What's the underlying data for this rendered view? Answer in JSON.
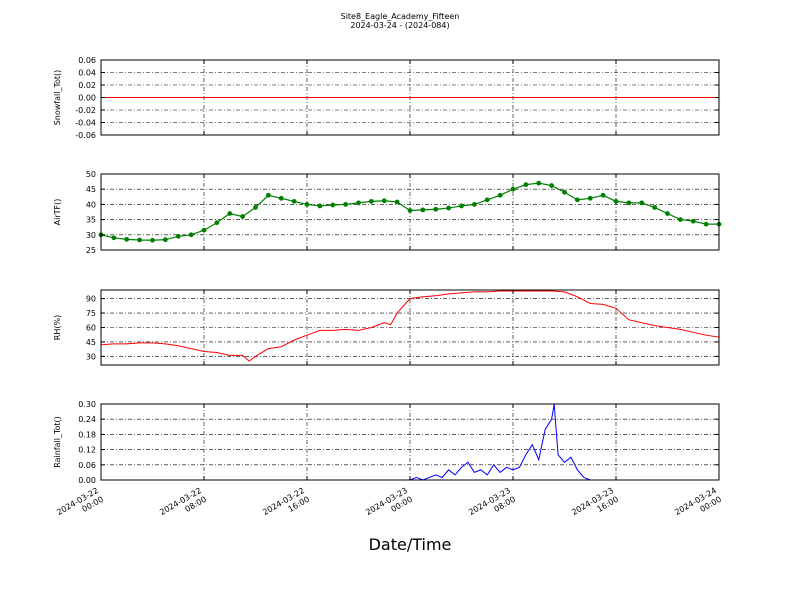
{
  "title": "Site8_Eagle_Academy_Fifteen",
  "subtitle": "2024-03-24 - (2024-084)",
  "xlabel": "Date/Time",
  "x_ticks": [
    "2024-03-22\n00:00",
    "2024-03-22\n08:00",
    "2024-03-22\n16:00",
    "2024-03-23\n00:00",
    "2024-03-23\n08:00",
    "2024-03-23\n16:00",
    "2024-03-24\n00:00"
  ],
  "colors": {
    "snowfall": "#ff0000",
    "airtf": "#008000",
    "rh": "#ff0000",
    "rainfall": "#0000ff"
  },
  "chart_data": [
    {
      "type": "line",
      "ylabel": "Snowfall_Tot()",
      "ylim": [
        -0.06,
        0.06
      ],
      "yticks": [
        "-0.06",
        "-0.04",
        "-0.02",
        "0.00",
        "0.02",
        "0.04",
        "0.06"
      ],
      "grid": true,
      "x": [
        0,
        48
      ],
      "series": [
        {
          "values": [
            0.0,
            0.0
          ]
        }
      ]
    },
    {
      "type": "line",
      "ylabel": "AirTF()",
      "ylim": [
        25,
        50
      ],
      "yticks": [
        "25",
        "30",
        "35",
        "40",
        "45",
        "50"
      ],
      "grid": true,
      "x": [
        0,
        1,
        2,
        3,
        4,
        5,
        6,
        7,
        8,
        9,
        10,
        11,
        12,
        13,
        14,
        15,
        16,
        17,
        18,
        19,
        20,
        21,
        22,
        23,
        24,
        25,
        26,
        27,
        28,
        29,
        30,
        31,
        32,
        33,
        34,
        35,
        36,
        37,
        38,
        39,
        40,
        41,
        42,
        43,
        44,
        45,
        46,
        47,
        48
      ],
      "series": [
        {
          "values": [
            30,
            29,
            28.5,
            28.3,
            28.2,
            28.4,
            29.5,
            30,
            31.5,
            34,
            37,
            36,
            39,
            43,
            42,
            41,
            40,
            39.5,
            39.8,
            40,
            40.5,
            41,
            41.2,
            40.8,
            38,
            38.2,
            38.4,
            38.8,
            39.5,
            40,
            41.5,
            43,
            45,
            46.5,
            47,
            46.2,
            44,
            41.5,
            42,
            43,
            41,
            40.5,
            40.5,
            39,
            37,
            35,
            34.5,
            33.5,
            33.5
          ]
        }
      ]
    },
    {
      "type": "line",
      "ylabel": "RH(%)",
      "ylim": [
        21,
        99
      ],
      "yticks": [
        "30",
        "45",
        "60",
        "75",
        "90"
      ],
      "grid": true,
      "x": [
        0,
        1,
        2,
        3,
        4,
        5,
        6,
        7,
        8,
        9,
        10,
        11,
        11.5,
        12,
        13,
        14,
        15,
        16,
        17,
        18,
        19,
        20,
        21,
        22,
        22.5,
        23,
        24,
        25,
        26,
        27,
        28,
        29,
        30,
        31,
        32,
        33,
        34,
        35,
        36,
        37,
        38,
        39,
        40,
        41,
        42,
        43,
        44,
        45,
        46,
        47,
        48
      ],
      "series": [
        {
          "values": [
            42,
            43,
            43,
            44,
            44,
            43,
            41,
            38,
            35,
            34,
            31,
            31,
            25,
            30,
            38,
            40,
            47,
            52,
            57,
            57,
            58,
            57,
            60,
            65,
            63,
            75,
            90,
            92,
            93,
            95,
            96,
            97,
            97,
            98,
            98,
            98,
            98,
            98,
            97,
            92,
            85,
            84,
            80,
            68,
            65,
            62,
            60,
            58,
            55,
            52,
            50
          ]
        }
      ]
    },
    {
      "type": "line",
      "ylabel": "Rainfall_Tot()",
      "ylim": [
        0,
        0.3
      ],
      "yticks": [
        "0.00",
        "0.06",
        "0.12",
        "0.18",
        "0.24",
        "0.30"
      ],
      "grid": true,
      "x": [
        0,
        24,
        24.5,
        25,
        26,
        26.5,
        27,
        27.5,
        28,
        28.5,
        29,
        29.5,
        30,
        30.5,
        31,
        31.5,
        32,
        32.5,
        33,
        33.5,
        34,
        34.5,
        35,
        35.2,
        35.5,
        36,
        36.5,
        37,
        37.5,
        38,
        48
      ],
      "series": [
        {
          "values": [
            0,
            0,
            0.01,
            0,
            0.02,
            0.01,
            0.04,
            0.02,
            0.05,
            0.07,
            0.03,
            0.04,
            0.02,
            0.06,
            0.03,
            0.05,
            0.04,
            0.05,
            0.1,
            0.14,
            0.08,
            0.2,
            0.24,
            0.3,
            0.1,
            0.07,
            0.09,
            0.04,
            0.01,
            0,
            0
          ]
        }
      ]
    }
  ]
}
